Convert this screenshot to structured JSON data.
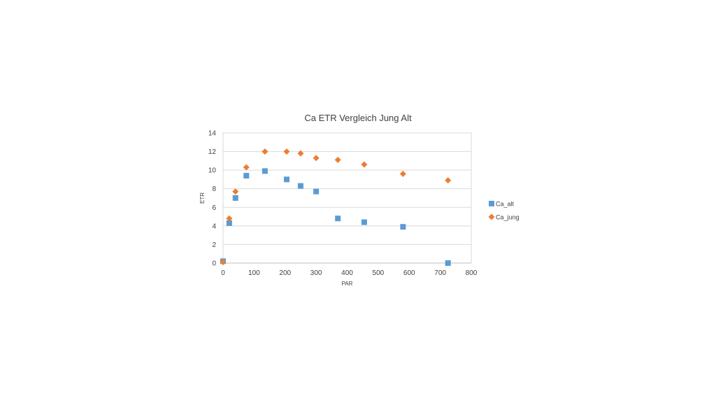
{
  "chart_data": {
    "type": "scatter",
    "title": "Ca ETR Vergleich Jung Alt",
    "xlabel": "PAR",
    "ylabel": "ETR",
    "xlim": [
      0,
      800
    ],
    "ylim": [
      0,
      14
    ],
    "xticks": [
      0,
      100,
      200,
      300,
      400,
      500,
      600,
      700,
      800
    ],
    "yticks": [
      0,
      2,
      4,
      6,
      8,
      10,
      12,
      14
    ],
    "grid": true,
    "legend_position": "right",
    "series": [
      {
        "name": "Ca_alt",
        "marker": "square",
        "color": "#5B9BD5",
        "x": [
          0,
          20,
          40,
          75,
          135,
          205,
          250,
          300,
          370,
          455,
          580,
          725
        ],
        "y": [
          0.2,
          4.3,
          7.0,
          9.4,
          9.9,
          9.0,
          8.3,
          7.7,
          4.8,
          4.4,
          3.9,
          0.0
        ]
      },
      {
        "name": "Ca_jung",
        "marker": "diamond",
        "color": "#ED7D31",
        "x": [
          0,
          20,
          40,
          75,
          135,
          205,
          250,
          300,
          370,
          455,
          580,
          725
        ],
        "y": [
          0.1,
          4.8,
          7.7,
          10.3,
          12.0,
          12.0,
          11.8,
          11.3,
          11.1,
          10.6,
          9.6,
          8.9
        ]
      }
    ]
  }
}
